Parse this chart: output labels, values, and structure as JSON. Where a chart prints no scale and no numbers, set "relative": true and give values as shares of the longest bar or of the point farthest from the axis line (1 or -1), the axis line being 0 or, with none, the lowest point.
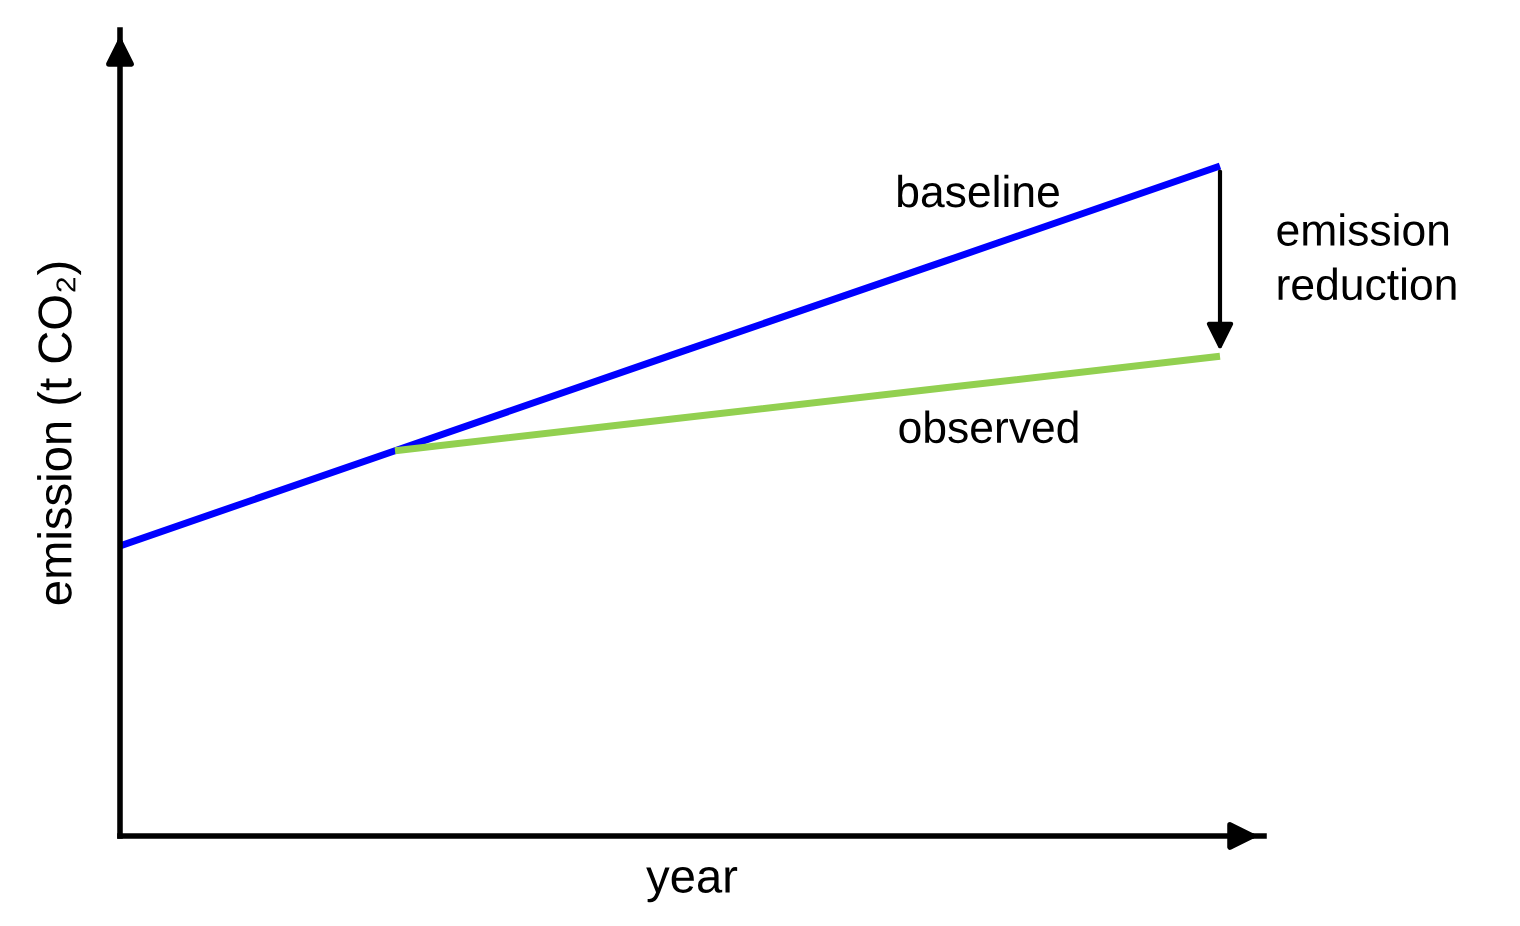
{
  "chart_data": {
    "type": "line",
    "relative": true,
    "xlabel": "year",
    "ylabel": "emission (t CO₂)",
    "categories": [
      null,
      null,
      null,
      null,
      null
    ],
    "series": [
      {
        "name": "baseline",
        "color": "#0000ff",
        "values": [
          0.433,
          0.575,
          0.717,
          0.858,
          1
        ]
      },
      {
        "name": "observed",
        "color": "#92d050",
        "values": [
          null,
          0.575,
          0.622,
          0.669,
          0.716
        ]
      }
    ],
    "annotations": [
      "emission\nreduction"
    ],
    "legend": false,
    "marker": "none",
    "line_style": "solid"
  }
}
